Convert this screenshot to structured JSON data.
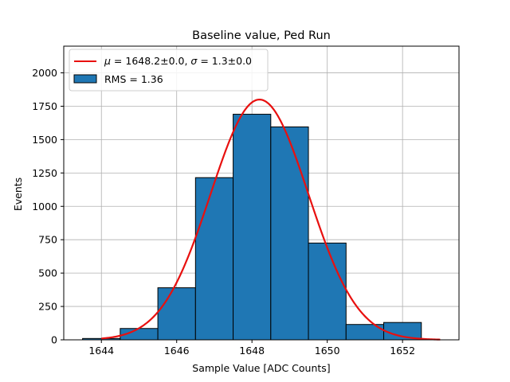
{
  "chart_data": {
    "type": "histogram",
    "title": "Baseline value, Ped Run",
    "xlabel": "Sample Value [ADC Counts]",
    "ylabel": "Events",
    "xlim": [
      1643.0,
      1653.5
    ],
    "ylim": [
      0,
      2200
    ],
    "xticks": [
      1644,
      1646,
      1648,
      1650,
      1652
    ],
    "xtick_labels": [
      "1644",
      "1646",
      "1648",
      "1650",
      "1652"
    ],
    "yticks": [
      0,
      250,
      500,
      750,
      1000,
      1250,
      1500,
      1750,
      2000
    ],
    "ytick_labels": [
      "0",
      "250",
      "500",
      "750",
      "1000",
      "1250",
      "1500",
      "1750",
      "2000"
    ],
    "grid": true,
    "bins": [
      {
        "x0": 1643.5,
        "x1": 1644.5,
        "value": 10
      },
      {
        "x0": 1644.5,
        "x1": 1645.5,
        "value": 85
      },
      {
        "x0": 1645.5,
        "x1": 1646.5,
        "value": 390
      },
      {
        "x0": 1646.5,
        "x1": 1647.5,
        "value": 1215
      },
      {
        "x0": 1647.5,
        "x1": 1648.5,
        "value": 1690
      },
      {
        "x0": 1648.5,
        "x1": 1649.5,
        "value": 1595
      },
      {
        "x0": 1649.5,
        "x1": 1650.5,
        "value": 725
      },
      {
        "x0": 1650.5,
        "x1": 1651.5,
        "value": 115
      },
      {
        "x0": 1651.5,
        "x1": 1652.5,
        "value": 130
      }
    ],
    "fit": {
      "type": "gaussian",
      "mu": 1648.2,
      "sigma": 1.3,
      "amplitude": 1800,
      "x_range": [
        1644.0,
        1653.0
      ]
    },
    "legend": {
      "position": "top-left",
      "entries": [
        {
          "kind": "line",
          "label_math": "μ",
          "label_rest": " = 1648.2±0.0, ",
          "label_math2": "σ",
          "label_rest2": " = 1.3±0.0"
        },
        {
          "kind": "patch",
          "label": "RMS = 1.36"
        }
      ]
    },
    "colors": {
      "bar_fill": "#1f77b4",
      "bar_edge": "#000000",
      "fit_line": "#e8100f",
      "grid": "#b0b0b0"
    }
  }
}
